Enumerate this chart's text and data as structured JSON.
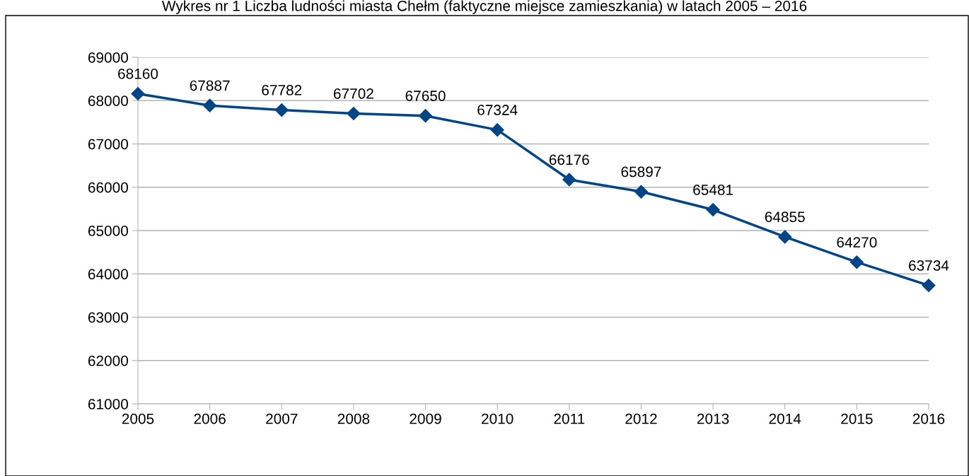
{
  "chart_data": {
    "type": "line",
    "title": "Wykres nr 1 Liczba ludności miasta Chełm (faktyczne miejsce zamieszkania) w latach 2005 – 2016",
    "categories": [
      "2005",
      "2006",
      "2007",
      "2008",
      "2009",
      "2010",
      "2011",
      "2012",
      "2013",
      "2014",
      "2015",
      "2016"
    ],
    "series": [
      {
        "color": "#004586",
        "values": [
          68160,
          67887,
          67782,
          67702,
          67650,
          67324,
          66176,
          65897,
          65481,
          64855,
          64270,
          63734
        ]
      }
    ],
    "ylim": [
      61000,
      69000
    ],
    "yticks": [
      61000,
      62000,
      63000,
      64000,
      65000,
      66000,
      67000,
      68000,
      69000
    ],
    "grid": "y",
    "marker": "diamond",
    "line_style": "solid",
    "data_labels": true,
    "legend": false
  }
}
